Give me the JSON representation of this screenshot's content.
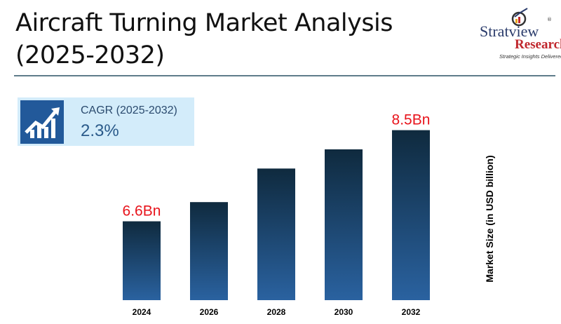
{
  "header": {
    "title": "Aircraft Turning Market Analysis (2025-2032)"
  },
  "logo": {
    "name": "Stratview",
    "name2": "Research",
    "tagline": "Strategic Insights Delivered",
    "reg": "®"
  },
  "cagr": {
    "label": "CAGR (2025-2032)",
    "value": "2.3%",
    "icon": "growth-chart-icon"
  },
  "chart_data": {
    "type": "bar",
    "title": "Aircraft Turning Market Analysis (2025-2032)",
    "xlabel": "",
    "ylabel": "Market Size (in USD billion)",
    "categories": [
      "2024",
      "2026",
      "2028",
      "2030",
      "2032"
    ],
    "values": [
      6.6,
      7.0,
      7.7,
      8.1,
      8.5
    ],
    "data_labels": [
      "6.6Bn",
      "",
      "",
      "",
      "8.5Bn"
    ],
    "grid": false,
    "colors": {
      "bar_top": "#0f2a3e",
      "bar_bottom": "#2a62a0",
      "label": "#e8141c"
    }
  }
}
